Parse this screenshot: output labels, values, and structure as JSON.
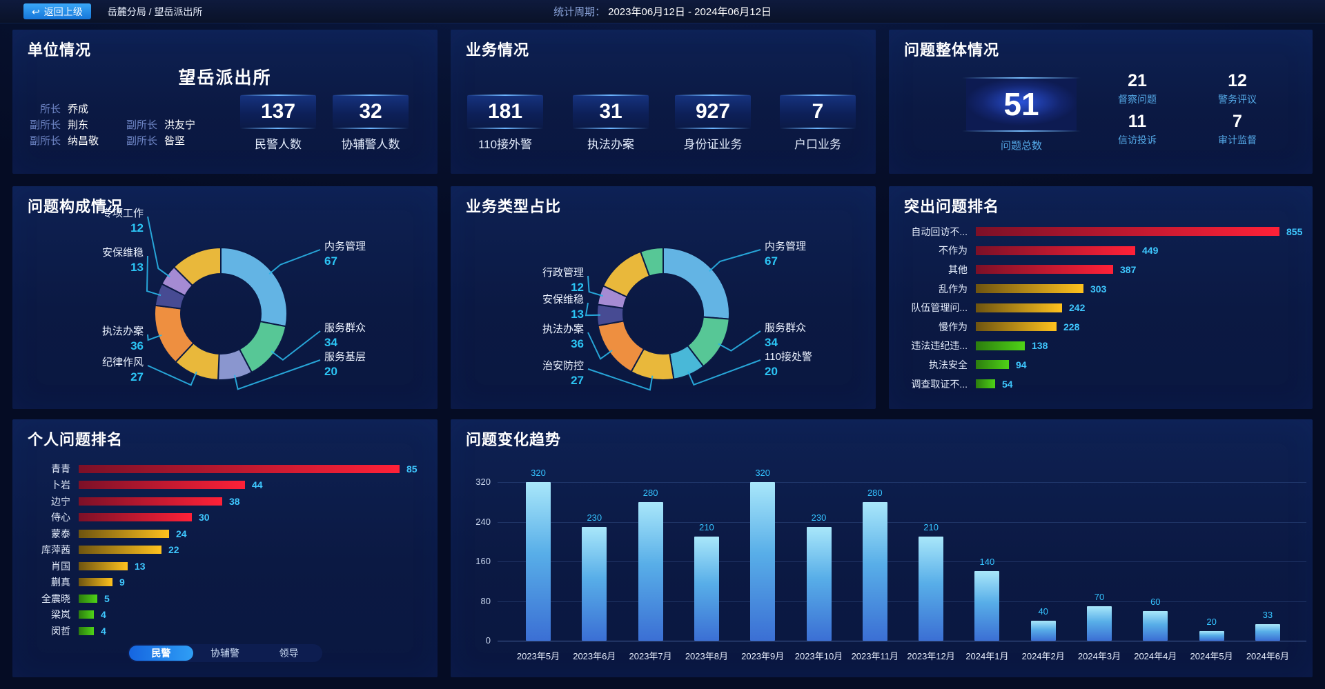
{
  "topbar": {
    "back_button": "返回上级",
    "breadcrumb": "岳麓分局 / 望岳派出所",
    "period_label": "统计周期：",
    "period_value": "2023年06月12日 - 2024年06月12日"
  },
  "unit_panel": {
    "title": "单位情况",
    "station_name": "望岳派出所",
    "leaders": [
      {
        "role": "所长",
        "name": "乔成"
      },
      {
        "role": "副所长",
        "name": "荆东"
      },
      {
        "role": "副所长",
        "name": "洪友宁"
      },
      {
        "role": "副所长",
        "name": "纳昌敬"
      },
      {
        "role": "副所长",
        "name": "昝坚"
      }
    ],
    "stats": [
      {
        "value": "137",
        "label": "民警人数"
      },
      {
        "value": "32",
        "label": "协辅警人数"
      }
    ]
  },
  "business_panel": {
    "title": "业务情况",
    "stats": [
      {
        "value": "181",
        "label": "110接外警"
      },
      {
        "value": "31",
        "label": "执法办案"
      },
      {
        "value": "927",
        "label": "身份证业务"
      },
      {
        "value": "7",
        "label": "户口业务"
      }
    ]
  },
  "problem_panel": {
    "title": "问题整体情况",
    "total": {
      "value": "51",
      "label": "问题总数"
    },
    "stats": [
      {
        "value": "21",
        "label": "督察问题"
      },
      {
        "value": "12",
        "label": "警务评议"
      },
      {
        "value": "11",
        "label": "信访投诉"
      },
      {
        "value": "7",
        "label": "审计监督"
      }
    ]
  },
  "personal_tabs": {
    "items": [
      "民警",
      "协辅警",
      "领导"
    ],
    "active": "民警"
  },
  "accent": {
    "value_cyan": "#3fc8ff",
    "label_blue": "#55aae8",
    "leader_line": "#2ab5e8"
  },
  "bar_palette": {
    "red": [
      "#7c1027",
      "#ff2138"
    ],
    "gold": [
      "#6e5410",
      "#ffc21e"
    ],
    "green": [
      "#2c7d0e",
      "#4fd317"
    ]
  },
  "chart_data": [
    {
      "id": "problem_composition",
      "type": "pie",
      "title": "问题构成情况",
      "labels": [
        "内务管理",
        "服务群众",
        "服务基层",
        "纪律作风",
        "执法办案",
        "安保维稳",
        "专项工作"
      ],
      "values": [
        67,
        34,
        20,
        27,
        36,
        13,
        12
      ],
      "colors": [
        "#63b4e4",
        "#57c796",
        "#8a96cf",
        "#e9b83b",
        "#ee8f40",
        "#474b93",
        "#a58bd3"
      ],
      "legend_position": "outside-callout"
    },
    {
      "id": "business_type",
      "type": "pie",
      "title": "业务类型占比",
      "labels": [
        "内务管理",
        "服务群众",
        "110接处警",
        "治安防控",
        "执法办案",
        "安保维稳",
        "行政管理"
      ],
      "values": [
        67,
        34,
        20,
        27,
        36,
        13,
        12
      ],
      "colors": [
        "#63b4e4",
        "#57c796",
        "#49b8d8",
        "#e9b83b",
        "#ee8f40",
        "#474b93",
        "#a58bd3"
      ],
      "legend_position": "outside-callout"
    },
    {
      "id": "outstanding_problems",
      "type": "bar",
      "orientation": "horizontal",
      "title": "突出问题排名",
      "categories": [
        "自动回访不...",
        "不作为",
        "其他",
        "乱作为",
        "队伍管理问...",
        "慢作为",
        "违法违纪违...",
        "执法安全",
        "调查取证不..."
      ],
      "values": [
        855,
        449,
        387,
        303,
        242,
        228,
        138,
        94,
        54
      ],
      "styles": [
        "red",
        "red",
        "red",
        "gold",
        "gold",
        "gold",
        "green",
        "green",
        "green"
      ],
      "xlim": [
        0,
        855
      ]
    },
    {
      "id": "personal_ranking",
      "type": "bar",
      "orientation": "horizontal",
      "title": "个人问题排名",
      "categories": [
        "青青",
        "卜岩",
        "边宁",
        "侍心",
        "蒙泰",
        "库萍茜",
        "肖国",
        "蒯真",
        "全震晓",
        "梁岚",
        "闵哲"
      ],
      "values": [
        85,
        44,
        38,
        30,
        24,
        22,
        13,
        9,
        5,
        4,
        4
      ],
      "styles": [
        "red",
        "red",
        "red",
        "red",
        "gold",
        "gold",
        "gold",
        "gold",
        "green",
        "green",
        "green"
      ],
      "xlim": [
        0,
        85
      ]
    },
    {
      "id": "problem_trend",
      "type": "bar",
      "orientation": "vertical",
      "title": "问题变化趋势",
      "categories": [
        "2023年5月",
        "2023年6月",
        "2023年7月",
        "2023年8月",
        "2023年9月",
        "2023年10月",
        "2023年11月",
        "2023年12月",
        "2024年1月",
        "2024年2月",
        "2024年3月",
        "2024年4月",
        "2024年5月",
        "2024年6月"
      ],
      "values": [
        320,
        230,
        280,
        210,
        320,
        230,
        280,
        210,
        140,
        40,
        70,
        60,
        20,
        33
      ],
      "yticks": [
        0,
        80,
        160,
        240,
        320
      ],
      "ylim": [
        0,
        320
      ],
      "grid": true,
      "bar_gradient": [
        "#a9e7fa",
        "#58aee8",
        "#3b6fd4"
      ],
      "value_color": "#35c3ff"
    }
  ]
}
